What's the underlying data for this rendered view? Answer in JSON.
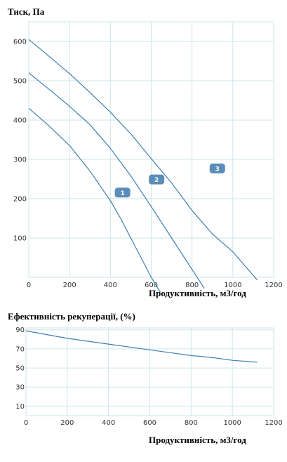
{
  "chart_data": [
    {
      "type": "line",
      "title": "Тиск, Па",
      "xlabel": "Продуктивність, м3/год",
      "ylabel": "",
      "xlim": [
        0,
        1200
      ],
      "ylim": [
        0,
        650
      ],
      "xticks": [
        "0",
        "200",
        "400",
        "600",
        "800",
        "1000",
        "1200"
      ],
      "yticks": [
        "100",
        "200",
        "300",
        "400",
        "500",
        "600"
      ],
      "grid": true,
      "series": [
        {
          "name": "1",
          "x": [
            0,
            100,
            200,
            300,
            400,
            450,
            500,
            550,
            600,
            645
          ],
          "y": [
            430,
            385,
            335,
            270,
            195,
            150,
            100,
            50,
            0,
            -38
          ]
        },
        {
          "name": "2",
          "x": [
            0,
            100,
            200,
            300,
            400,
            500,
            600,
            700,
            800,
            860
          ],
          "y": [
            520,
            478,
            435,
            388,
            328,
            258,
            180,
            100,
            20,
            -28
          ]
        },
        {
          "name": "3",
          "x": [
            0,
            100,
            200,
            300,
            400,
            500,
            600,
            700,
            800,
            900,
            1000,
            1120
          ],
          "y": [
            605,
            562,
            518,
            470,
            420,
            365,
            302,
            240,
            170,
            110,
            65,
            -7
          ]
        }
      ]
    },
    {
      "type": "line",
      "title": "Ефективність рекуперації, (%)",
      "xlabel": "Продуктивність, м3/год",
      "ylabel": "",
      "xlim": [
        0,
        1200
      ],
      "ylim": [
        0,
        92
      ],
      "xticks": [
        "0",
        "200",
        "400",
        "600",
        "800",
        "1000",
        "1200"
      ],
      "yticks": [
        "10",
        "30",
        "50",
        "70",
        "90"
      ],
      "grid": true,
      "series": [
        {
          "name": "",
          "x": [
            0,
            100,
            200,
            300,
            400,
            500,
            600,
            700,
            800,
            900,
            1000,
            1120
          ],
          "y": [
            89,
            85,
            81,
            78,
            75,
            72,
            69,
            66,
            63,
            61,
            58,
            56
          ]
        }
      ]
    }
  ],
  "colors": {
    "line": "#3c7fb1",
    "grid": "#cde6ea",
    "badge": "#5a8db7"
  }
}
